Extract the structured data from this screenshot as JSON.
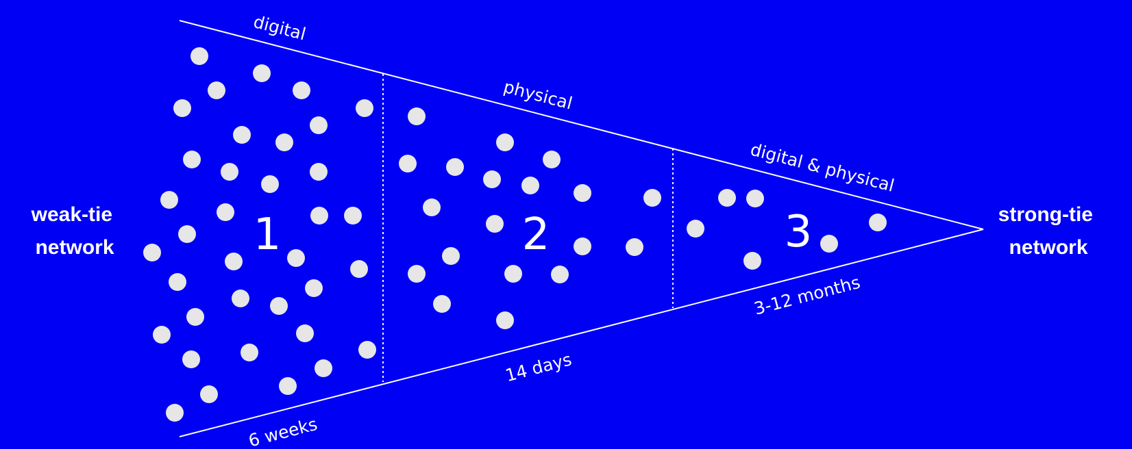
{
  "left_label": [
    "weak-tie",
    "network"
  ],
  "right_label": [
    "strong-tie",
    "network"
  ],
  "top_labels": [
    "digital",
    "physical",
    "digital & physical"
  ],
  "bottom_labels": [
    "6 weeks",
    "14 days",
    "3-12 months"
  ],
  "stages": [
    {
      "number": "1"
    },
    {
      "number": "2"
    },
    {
      "number": "3"
    }
  ],
  "colors": {
    "background": "#0000F5",
    "lines": "#FFFFFF",
    "dots": "#E6E6E6"
  }
}
